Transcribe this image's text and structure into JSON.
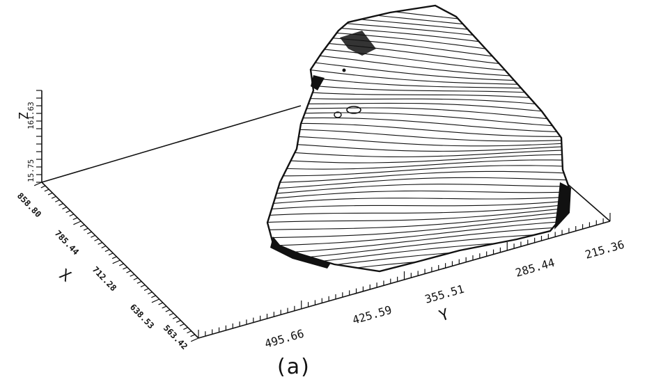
{
  "figure": {
    "caption": "(a)",
    "z_axis": {
      "label": "Z",
      "ticks": [
        "15.75",
        "161.63"
      ]
    },
    "x_axis": {
      "label": "X",
      "ticks": [
        "858.80",
        "785.44",
        "712.28",
        "638.53",
        "563.42"
      ]
    },
    "y_axis": {
      "label": "Y",
      "ticks": [
        "495.66",
        "425.59",
        "355.51",
        "285.44",
        "215.36"
      ]
    }
  }
}
